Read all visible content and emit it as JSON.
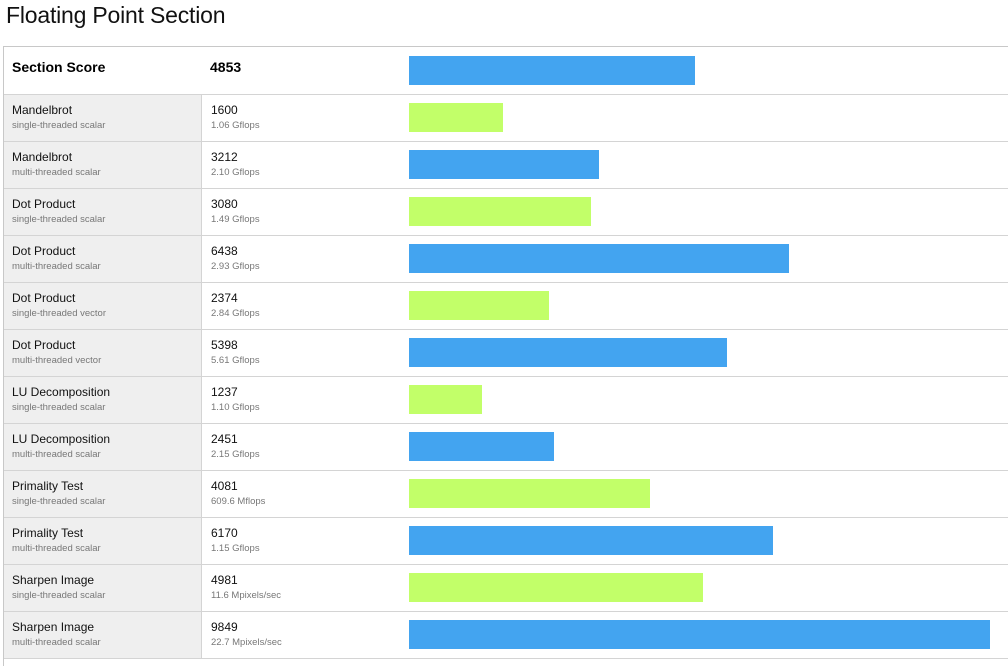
{
  "page": {
    "title": "Floating Point Section"
  },
  "colors": {
    "blue_bar": "#43a4f0",
    "green_bar": "#c2ff69",
    "name_column_bg": "#efefef"
  },
  "scale_max": 10000,
  "section": {
    "label": "Section Score",
    "score": "4853",
    "value": 4853,
    "color": "blue"
  },
  "rows": [
    {
      "name": "Mandelbrot",
      "sub": "single-threaded scalar",
      "score": "1600",
      "metric": "1.06 Gflops",
      "value": 1600,
      "color": "green"
    },
    {
      "name": "Mandelbrot",
      "sub": "multi-threaded scalar",
      "score": "3212",
      "metric": "2.10 Gflops",
      "value": 3212,
      "color": "blue"
    },
    {
      "name": "Dot Product",
      "sub": "single-threaded scalar",
      "score": "3080",
      "metric": "1.49 Gflops",
      "value": 3080,
      "color": "green"
    },
    {
      "name": "Dot Product",
      "sub": "multi-threaded scalar",
      "score": "6438",
      "metric": "2.93 Gflops",
      "value": 6438,
      "color": "blue"
    },
    {
      "name": "Dot Product",
      "sub": "single-threaded vector",
      "score": "2374",
      "metric": "2.84 Gflops",
      "value": 2374,
      "color": "green"
    },
    {
      "name": "Dot Product",
      "sub": "multi-threaded vector",
      "score": "5398",
      "metric": "5.61 Gflops",
      "value": 5398,
      "color": "blue"
    },
    {
      "name": "LU Decomposition",
      "sub": "single-threaded scalar",
      "score": "1237",
      "metric": "1.10 Gflops",
      "value": 1237,
      "color": "green"
    },
    {
      "name": "LU Decomposition",
      "sub": "multi-threaded scalar",
      "score": "2451",
      "metric": "2.15 Gflops",
      "value": 2451,
      "color": "blue"
    },
    {
      "name": "Primality Test",
      "sub": "single-threaded scalar",
      "score": "4081",
      "metric": "609.6 Mflops",
      "value": 4081,
      "color": "green"
    },
    {
      "name": "Primality Test",
      "sub": "multi-threaded scalar",
      "score": "6170",
      "metric": "1.15 Gflops",
      "value": 6170,
      "color": "blue"
    },
    {
      "name": "Sharpen Image",
      "sub": "single-threaded scalar",
      "score": "4981",
      "metric": "11.6 Mpixels/sec",
      "value": 4981,
      "color": "green"
    },
    {
      "name": "Sharpen Image",
      "sub": "multi-threaded scalar",
      "score": "9849",
      "metric": "22.7 Mpixels/sec",
      "value": 9849,
      "color": "blue"
    }
  ]
}
